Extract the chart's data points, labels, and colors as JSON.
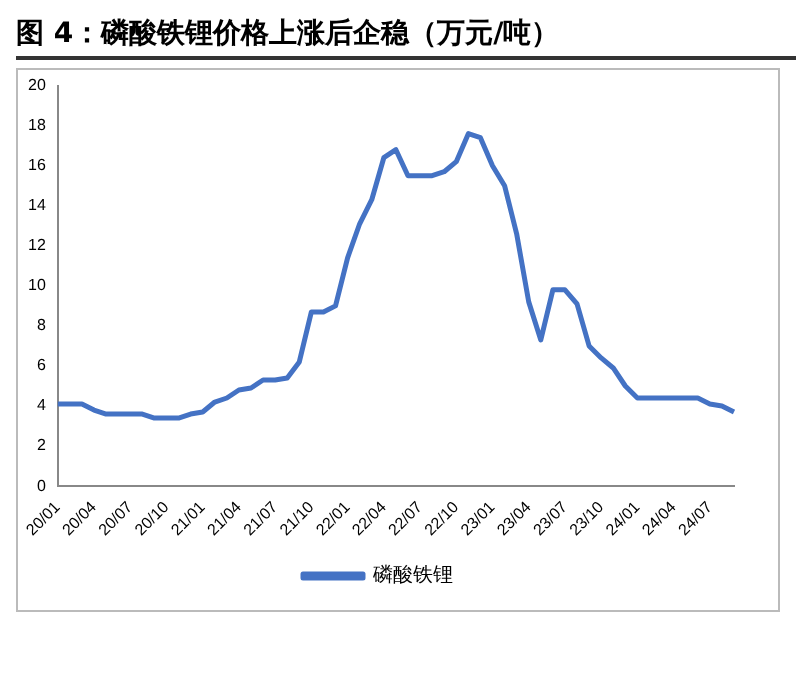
{
  "chart_data": {
    "type": "line",
    "title": "图 4：磷酸铁锂价格上涨后企稳（万元/吨）",
    "categories": [
      "20/01",
      null,
      null,
      "20/04",
      null,
      null,
      "20/07",
      null,
      null,
      "20/10",
      null,
      null,
      "21/01",
      null,
      null,
      "21/04",
      null,
      null,
      "21/07",
      null,
      null,
      "21/10",
      null,
      null,
      "22/01",
      null,
      null,
      "22/04",
      null,
      null,
      "22/07",
      null,
      null,
      "22/10",
      null,
      null,
      "23/01",
      null,
      null,
      "23/04",
      null,
      null,
      "23/07",
      null,
      null,
      "23/10",
      null,
      null,
      "24/01",
      null,
      null,
      "24/04",
      null,
      null,
      "24/07",
      null,
      null
    ],
    "series": [
      {
        "name": "磷酸铁锂",
        "color": "#4472c4",
        "values": [
          4.1,
          4.1,
          4.1,
          3.8,
          3.6,
          3.6,
          3.6,
          3.6,
          3.4,
          3.4,
          3.4,
          3.6,
          3.7,
          4.2,
          4.4,
          4.8,
          4.9,
          5.3,
          5.3,
          5.4,
          6.2,
          8.7,
          8.7,
          9.0,
          11.4,
          13.1,
          14.3,
          16.4,
          16.8,
          15.5,
          15.5,
          15.5,
          15.7,
          16.2,
          17.6,
          17.4,
          16.0,
          15.0,
          12.6,
          9.2,
          7.3,
          9.8,
          9.8,
          9.1,
          7.0,
          6.4,
          5.9,
          5.0,
          4.4,
          4.4,
          4.4,
          4.4,
          4.4,
          4.4,
          4.1,
          4.0,
          3.7
        ]
      }
    ],
    "ylim": [
      0,
      20
    ],
    "yticks": [
      0,
      2,
      4,
      6,
      8,
      10,
      12,
      14,
      16,
      18,
      20
    ],
    "grid": false,
    "legend": "bottom",
    "marker": "none",
    "line_style": "solid"
  }
}
